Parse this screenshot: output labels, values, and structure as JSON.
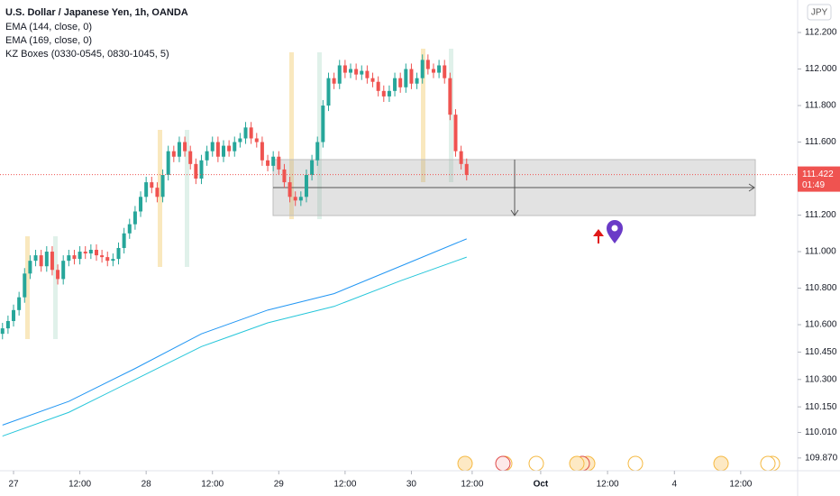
{
  "chart_data": {
    "type": "candlestick",
    "title": "U.S. Dollar / Japanese Yen, 1h, OANDA",
    "indicators": [
      "KZ Boxes (0330-0545, 0830-1045, 5)"
    ],
    "currency": "JPY",
    "up_color": "#26a69a",
    "down_color": "#ef5350",
    "x": [
      -2,
      -1,
      0,
      1,
      2,
      3,
      4,
      5,
      6,
      7,
      8,
      9,
      10,
      11,
      12,
      13,
      14,
      15,
      16,
      17,
      18,
      19,
      20,
      21,
      22,
      23,
      24,
      25,
      26,
      27,
      28,
      29,
      30,
      31,
      32,
      33,
      34,
      35,
      36,
      37,
      38,
      39,
      40,
      41,
      42,
      43,
      44,
      45,
      46,
      47,
      48,
      49,
      50,
      51,
      52,
      53,
      54,
      55,
      56,
      57,
      58,
      59,
      60,
      61,
      62,
      63,
      64,
      65,
      66,
      67,
      68,
      69,
      70,
      71,
      72,
      73,
      74,
      75,
      76,
      77,
      78,
      79,
      80,
      81,
      82
    ],
    "open": [
      110.55,
      110.58,
      110.62,
      110.68,
      110.75,
      110.88,
      110.95,
      110.98,
      110.92,
      111.0,
      110.9,
      110.85,
      110.95,
      110.98,
      110.96,
      111.0,
      110.99,
      111.01,
      110.98,
      110.97,
      110.95,
      110.96,
      111.02,
      111.1,
      111.15,
      111.22,
      111.3,
      111.38,
      111.35,
      111.3,
      111.42,
      111.55,
      111.52,
      111.6,
      111.55,
      111.48,
      111.4,
      111.5,
      111.55,
      111.6,
      111.52,
      111.58,
      111.55,
      111.6,
      111.62,
      111.68,
      111.62,
      111.6,
      111.5,
      111.47,
      111.52,
      111.45,
      111.38,
      111.3,
      111.28,
      111.3,
      111.42,
      111.5,
      111.6,
      111.8,
      111.95,
      111.92,
      112.02,
      111.98,
      112.0,
      111.97,
      111.99,
      111.95,
      111.93,
      111.88,
      111.85,
      111.88,
      111.95,
      111.9,
      112.0,
      111.92,
      111.95,
      112.05,
      112.0,
      111.98,
      112.02,
      111.95,
      111.75,
      111.55,
      111.48
    ],
    "high": [
      110.61,
      110.65,
      110.71,
      110.78,
      110.91,
      110.98,
      111.01,
      111.01,
      111.03,
      111.03,
      110.93,
      110.98,
      111.01,
      111.01,
      111.03,
      111.03,
      111.04,
      111.04,
      111.01,
      111.0,
      110.99,
      111.05,
      111.13,
      111.18,
      111.25,
      111.33,
      111.41,
      111.41,
      111.38,
      111.45,
      111.58,
      111.58,
      111.63,
      111.63,
      111.58,
      111.51,
      111.53,
      111.58,
      111.63,
      111.63,
      111.61,
      111.61,
      111.63,
      111.65,
      111.71,
      111.71,
      111.65,
      111.63,
      111.53,
      111.55,
      111.55,
      111.48,
      111.41,
      111.33,
      111.33,
      111.45,
      111.53,
      111.63,
      111.83,
      111.98,
      111.98,
      112.05,
      112.05,
      112.03,
      112.03,
      112.02,
      112.02,
      111.98,
      111.96,
      111.91,
      111.91,
      111.98,
      111.98,
      112.03,
      112.03,
      111.98,
      112.08,
      112.08,
      112.03,
      112.05,
      112.05,
      111.98,
      111.78,
      111.58,
      111.51
    ],
    "low": [
      110.52,
      110.55,
      110.59,
      110.65,
      110.72,
      110.85,
      110.92,
      110.89,
      110.89,
      110.87,
      110.82,
      110.82,
      110.92,
      110.93,
      110.93,
      110.96,
      110.96,
      110.95,
      110.94,
      110.92,
      110.92,
      110.93,
      110.99,
      111.07,
      111.12,
      111.19,
      111.27,
      111.32,
      111.27,
      111.27,
      111.39,
      111.49,
      111.49,
      111.52,
      111.45,
      111.37,
      111.37,
      111.47,
      111.52,
      111.49,
      111.49,
      111.52,
      111.52,
      111.57,
      111.59,
      111.59,
      111.57,
      111.47,
      111.44,
      111.44,
      111.42,
      111.35,
      111.27,
      111.25,
      111.25,
      111.27,
      111.39,
      111.47,
      111.57,
      111.77,
      111.89,
      111.89,
      111.95,
      111.95,
      111.94,
      111.94,
      111.92,
      111.9,
      111.85,
      111.82,
      111.82,
      111.85,
      111.87,
      111.87,
      111.89,
      111.89,
      111.92,
      111.97,
      111.95,
      111.95,
      111.92,
      111.72,
      111.52,
      111.45,
      111.39
    ],
    "close": [
      110.58,
      110.62,
      110.68,
      110.75,
      110.88,
      110.95,
      110.98,
      110.92,
      111.0,
      110.9,
      110.85,
      110.95,
      110.98,
      110.96,
      111.0,
      110.99,
      111.01,
      110.98,
      110.97,
      110.95,
      110.96,
      111.02,
      111.1,
      111.15,
      111.22,
      111.3,
      111.38,
      111.35,
      111.3,
      111.42,
      111.55,
      111.52,
      111.6,
      111.55,
      111.48,
      111.4,
      111.5,
      111.55,
      111.6,
      111.52,
      111.58,
      111.55,
      111.6,
      111.62,
      111.68,
      111.62,
      111.6,
      111.5,
      111.47,
      111.52,
      111.45,
      111.38,
      111.3,
      111.28,
      111.3,
      111.42,
      111.5,
      111.6,
      111.8,
      111.95,
      111.92,
      112.02,
      111.98,
      112.0,
      111.97,
      111.99,
      111.95,
      111.93,
      111.88,
      111.85,
      111.88,
      111.95,
      111.9,
      112.0,
      111.92,
      111.95,
      112.05,
      112.0,
      111.98,
      112.02,
      111.95,
      111.75,
      111.55,
      111.48,
      111.42
    ],
    "series": [
      {
        "name": "EMA (144, close, 0)",
        "color": "#2196f3",
        "x": [
          -2,
          10,
          22,
          34,
          46,
          58,
          70,
          82
        ],
        "values": [
          110.05,
          110.18,
          110.36,
          110.55,
          110.68,
          110.77,
          110.92,
          111.07
        ]
      },
      {
        "name": "EMA (169, close, 0)",
        "color": "#26c6da",
        "x": [
          -2,
          10,
          22,
          34,
          46,
          58,
          70,
          82
        ],
        "values": [
          109.99,
          110.12,
          110.3,
          110.48,
          110.61,
          110.7,
          110.84,
          110.97
        ]
      }
    ],
    "last_price": 111.422,
    "countdown": "01:49",
    "xlim": [
      -2.45,
      141.9
    ],
    "xticks": [
      {
        "value": 0,
        "label": "27"
      },
      {
        "value": 12,
        "label": "12:00"
      },
      {
        "value": 24,
        "label": "28"
      },
      {
        "value": 36,
        "label": "12:00"
      },
      {
        "value": 48,
        "label": "29"
      },
      {
        "value": 60,
        "label": "12:00"
      },
      {
        "value": 72,
        "label": "30"
      },
      {
        "value": 83,
        "label": "12:00"
      },
      {
        "value": 95.4,
        "label": "Oct"
      },
      {
        "value": 107.5,
        "label": "12:00"
      },
      {
        "value": 119.6,
        "label": "4"
      },
      {
        "value": 131.6,
        "label": "12:00"
      }
    ],
    "ylim": [
      109.81,
      112.378
    ],
    "yticks": [
      {
        "value": 112.2,
        "label": "112.200"
      },
      {
        "value": 112.0,
        "label": "112.000"
      },
      {
        "value": 111.8,
        "label": "111.800"
      },
      {
        "value": 111.6,
        "label": "111.600"
      },
      {
        "value": 111.2,
        "label": "111.200"
      },
      {
        "value": 111.0,
        "label": "111.000"
      },
      {
        "value": 110.8,
        "label": "110.800"
      },
      {
        "value": 110.6,
        "label": "110.600"
      },
      {
        "value": 110.45,
        "label": "110.450"
      },
      {
        "value": 110.3,
        "label": "110.300"
      },
      {
        "value": 110.15,
        "label": "110.150"
      },
      {
        "value": 110.01,
        "label": "110.010"
      },
      {
        "value": 109.87,
        "label": "109.870"
      }
    ]
  }
}
